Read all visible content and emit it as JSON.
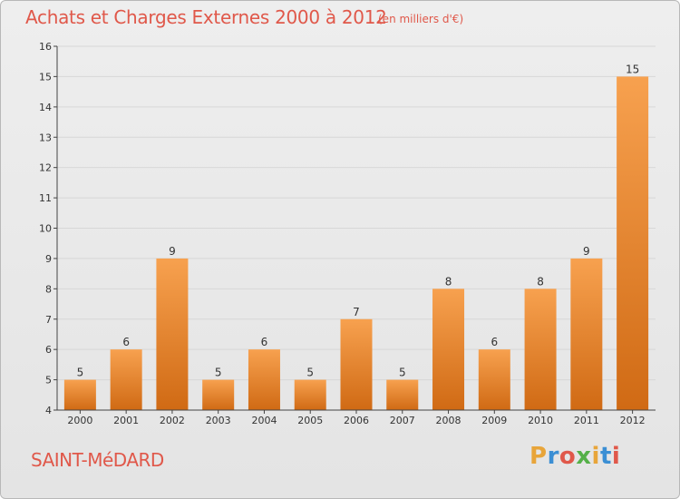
{
  "header": {
    "title": "Achats et Charges Externes 2000 à 2012",
    "subtitle": "(en milliers d'€)"
  },
  "footer": {
    "commune": "SAINT-MéDARD",
    "logo_text": "Proxiti",
    "logo_colors": [
      "#e8a53a",
      "#3b8fd4",
      "#e0584a",
      "#55b048",
      "#e8a53a",
      "#3b8fd4",
      "#e0584a"
    ]
  },
  "colors": {
    "bar_top": "#f7a14f",
    "bar_bottom": "#d06a14",
    "accent_text": "#e0584a",
    "grid": "#d7d7d7",
    "axis": "#444444"
  },
  "chart_data": {
    "type": "bar",
    "title": "Achats et Charges Externes 2000 à 2012",
    "subtitle": "(en milliers d'€)",
    "categories": [
      "2000",
      "2001",
      "2002",
      "2003",
      "2004",
      "2005",
      "2006",
      "2007",
      "2008",
      "2009",
      "2010",
      "2011",
      "2012"
    ],
    "values": [
      5,
      6,
      9,
      5,
      6,
      5,
      7,
      5,
      8,
      6,
      8,
      9,
      15
    ],
    "ylim": [
      4,
      16
    ],
    "yticks": [
      4,
      5,
      6,
      7,
      8,
      9,
      10,
      11,
      12,
      13,
      14,
      15,
      16
    ],
    "grid": true,
    "xlabel": "",
    "ylabel": ""
  }
}
